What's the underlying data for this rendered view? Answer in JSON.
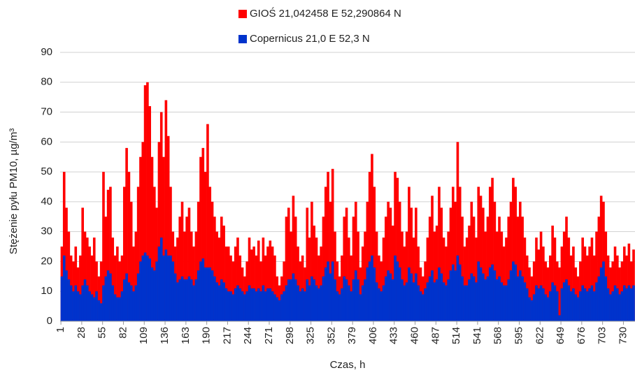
{
  "chart_data": {
    "type": "bar",
    "x_label": "Czas, h",
    "y_label": "Stężenie pyłu PM10, µg/m³",
    "xlim": [
      0,
      745
    ],
    "xticks": [
      1,
      28,
      55,
      82,
      109,
      136,
      163,
      190,
      217,
      244,
      271,
      298,
      325,
      352,
      379,
      406,
      433,
      460,
      487,
      514,
      541,
      568,
      595,
      622,
      649,
      676,
      703,
      730
    ],
    "ylim": [
      0,
      90
    ],
    "yticks": [
      0,
      10,
      20,
      30,
      40,
      50,
      60,
      70,
      80,
      90
    ],
    "grid": true,
    "legend": "top",
    "x": [
      1,
      4,
      7,
      10,
      13,
      16,
      19,
      22,
      25,
      28,
      31,
      34,
      37,
      40,
      43,
      46,
      49,
      52,
      55,
      58,
      61,
      64,
      67,
      70,
      73,
      76,
      79,
      82,
      85,
      88,
      91,
      94,
      97,
      100,
      103,
      106,
      109,
      112,
      115,
      118,
      121,
      124,
      127,
      130,
      133,
      136,
      139,
      142,
      145,
      148,
      151,
      154,
      157,
      160,
      163,
      166,
      169,
      172,
      175,
      178,
      181,
      184,
      187,
      190,
      193,
      196,
      199,
      202,
      205,
      208,
      211,
      214,
      217,
      220,
      223,
      226,
      229,
      232,
      235,
      238,
      241,
      244,
      247,
      250,
      253,
      256,
      259,
      262,
      265,
      268,
      271,
      274,
      277,
      280,
      283,
      286,
      289,
      292,
      295,
      298,
      301,
      304,
      307,
      310,
      313,
      316,
      319,
      322,
      325,
      328,
      331,
      334,
      337,
      340,
      343,
      346,
      349,
      352,
      355,
      358,
      361,
      364,
      367,
      370,
      373,
      376,
      379,
      382,
      385,
      388,
      391,
      394,
      397,
      400,
      403,
      406,
      409,
      412,
      415,
      418,
      421,
      424,
      427,
      430,
      433,
      436,
      439,
      442,
      445,
      448,
      451,
      454,
      457,
      460,
      463,
      466,
      469,
      472,
      475,
      478,
      481,
      484,
      487,
      490,
      493,
      496,
      499,
      502,
      505,
      508,
      511,
      514,
      517,
      520,
      523,
      526,
      529,
      532,
      535,
      538,
      541,
      544,
      547,
      550,
      553,
      556,
      559,
      562,
      565,
      568,
      571,
      574,
      577,
      580,
      583,
      586,
      589,
      592,
      595,
      598,
      601,
      604,
      607,
      610,
      613,
      616,
      619,
      622,
      625,
      628,
      631,
      634,
      637,
      640,
      643,
      646,
      649,
      652,
      655,
      658,
      661,
      664,
      667,
      670,
      673,
      676,
      679,
      682,
      685,
      688,
      691,
      694,
      697,
      700,
      703,
      706,
      709,
      712,
      715,
      718,
      721,
      724,
      727,
      730,
      733,
      736,
      739,
      742
    ],
    "series": [
      {
        "name": "GIOŚ 21,042458 E 52,290864 N",
        "color": "#ff0000",
        "values": [
          25,
          50,
          38,
          30,
          22,
          20,
          25,
          18,
          22,
          38,
          30,
          28,
          25,
          22,
          28,
          20,
          15,
          20,
          50,
          35,
          44,
          45,
          28,
          22,
          25,
          20,
          22,
          45,
          58,
          50,
          40,
          25,
          30,
          45,
          55,
          60,
          79,
          80,
          72,
          55,
          45,
          38,
          60,
          70,
          55,
          74,
          62,
          45,
          30,
          25,
          28,
          35,
          40,
          30,
          35,
          38,
          30,
          25,
          30,
          40,
          55,
          58,
          50,
          66,
          45,
          40,
          35,
          30,
          28,
          35,
          32,
          25,
          25,
          22,
          20,
          25,
          28,
          22,
          18,
          15,
          20,
          28,
          24,
          25,
          22,
          27,
          20,
          28,
          22,
          25,
          27,
          25,
          22,
          15,
          12,
          15,
          20,
          35,
          38,
          30,
          42,
          35,
          25,
          20,
          22,
          18,
          38,
          28,
          40,
          32,
          28,
          22,
          25,
          35,
          45,
          50,
          40,
          51,
          30,
          20,
          15,
          22,
          35,
          38,
          28,
          22,
          35,
          40,
          30,
          18,
          25,
          30,
          40,
          50,
          56,
          45,
          30,
          22,
          20,
          28,
          35,
          40,
          38,
          32,
          50,
          48,
          40,
          30,
          25,
          30,
          45,
          38,
          28,
          38,
          25,
          18,
          15,
          20,
          28,
          35,
          42,
          30,
          32,
          45,
          38,
          28,
          25,
          30,
          38,
          45,
          40,
          60,
          45,
          35,
          25,
          28,
          32,
          40,
          35,
          28,
          45,
          42,
          38,
          30,
          35,
          45,
          48,
          40,
          30,
          35,
          30,
          25,
          28,
          35,
          40,
          48,
          45,
          35,
          40,
          35,
          28,
          22,
          18,
          15,
          20,
          28,
          24,
          30,
          25,
          20,
          18,
          22,
          32,
          28,
          20,
          18,
          25,
          30,
          35,
          28,
          22,
          25,
          18,
          15,
          20,
          28,
          25,
          22,
          25,
          28,
          22,
          30,
          35,
          42,
          40,
          30,
          22,
          18,
          20,
          25,
          22,
          18,
          20,
          25,
          22,
          26,
          20,
          24
        ]
      },
      {
        "name": "Copernicus 21,0 E 52,3 N",
        "color": "#0033cc",
        "values": [
          15,
          22,
          17,
          14,
          12,
          10,
          12,
          10,
          9,
          12,
          14,
          12,
          10,
          9,
          8,
          10,
          7,
          6,
          12,
          15,
          17,
          16,
          12,
          9,
          8,
          8,
          10,
          14,
          16,
          13,
          12,
          10,
          12,
          16,
          20,
          22,
          23,
          22,
          21,
          18,
          17,
          20,
          25,
          28,
          22,
          24,
          22,
          22,
          20,
          16,
          13,
          14,
          15,
          14,
          14,
          15,
          14,
          12,
          14,
          17,
          20,
          21,
          18,
          18,
          18,
          17,
          15,
          13,
          12,
          14,
          13,
          11,
          10,
          10,
          9,
          11,
          12,
          11,
          10,
          9,
          10,
          12,
          11,
          11,
          10,
          11,
          10,
          12,
          10,
          11,
          11,
          10,
          9,
          8,
          7,
          9,
          10,
          12,
          14,
          14,
          16,
          14,
          12,
          10,
          11,
          10,
          14,
          12,
          15,
          14,
          12,
          11,
          12,
          15,
          18,
          20,
          16,
          20,
          14,
          10,
          9,
          11,
          15,
          14,
          12,
          10,
          14,
          17,
          14,
          9,
          12,
          14,
          18,
          20,
          22,
          18,
          13,
          11,
          10,
          12,
          15,
          17,
          16,
          14,
          22,
          20,
          18,
          14,
          12,
          13,
          18,
          16,
          13,
          16,
          12,
          10,
          9,
          11,
          13,
          15,
          17,
          13,
          14,
          18,
          16,
          13,
          12,
          14,
          17,
          19,
          17,
          22,
          19,
          15,
          12,
          12,
          14,
          16,
          15,
          13,
          20,
          18,
          16,
          14,
          15,
          18,
          19,
          17,
          14,
          15,
          13,
          12,
          12,
          14,
          17,
          20,
          19,
          15,
          17,
          15,
          13,
          11,
          8,
          7,
          9,
          12,
          11,
          12,
          11,
          9,
          8,
          10,
          13,
          12,
          10,
          2,
          11,
          13,
          14,
          12,
          10,
          11,
          9,
          8,
          10,
          12,
          11,
          10,
          11,
          12,
          10,
          13,
          15,
          18,
          20,
          15,
          11,
          9,
          10,
          12,
          11,
          9,
          10,
          12,
          11,
          12,
          11,
          12
        ]
      }
    ]
  }
}
